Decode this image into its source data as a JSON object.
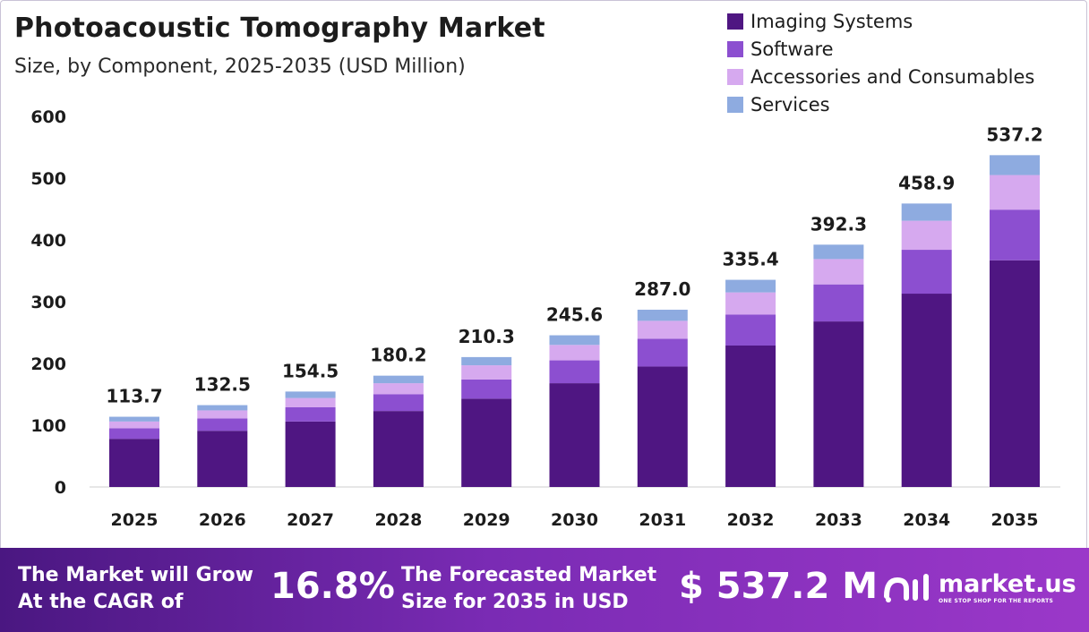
{
  "title": "Photoacoustic Tomography Market",
  "subtitle": "Size, by Component, 2025-2035 (USD Million)",
  "legend": [
    {
      "label": "Imaging Systems",
      "color": "#4f1682"
    },
    {
      "label": "Software",
      "color": "#8c4fd0"
    },
    {
      "label": "Accessories and Consumables",
      "color": "#d6a9ef"
    },
    {
      "label": "Services",
      "color": "#8eabe0"
    }
  ],
  "chart_data": {
    "type": "bar",
    "stacked": true,
    "categories": [
      "2025",
      "2026",
      "2027",
      "2028",
      "2029",
      "2030",
      "2031",
      "2032",
      "2033",
      "2034",
      "2035"
    ],
    "series": [
      {
        "name": "Imaging Systems",
        "color": "#4f1682",
        "values": [
          78,
          91,
          106,
          123,
          143,
          168,
          195,
          229,
          268,
          313,
          367
        ]
      },
      {
        "name": "Software",
        "color": "#8c4fd0",
        "values": [
          17,
          20,
          23,
          27,
          31,
          37,
          45,
          50,
          60,
          71,
          82
        ]
      },
      {
        "name": "Accessories and Consumables",
        "color": "#d6a9ef",
        "values": [
          11,
          13,
          15,
          18,
          23,
          25,
          29,
          36,
          41,
          47,
          56
        ]
      },
      {
        "name": "Services",
        "color": "#8eabe0",
        "values": [
          7.7,
          8.5,
          10.5,
          12.2,
          13.3,
          15.6,
          18.0,
          20.4,
          23.3,
          27.9,
          32.2
        ]
      }
    ],
    "totals": [
      "113.7",
      "132.5",
      "154.5",
      "180.2",
      "210.3",
      "245.6",
      "287.0",
      "335.4",
      "392.3",
      "458.9",
      "537.2"
    ],
    "y_ticks": [
      "0",
      "100",
      "200",
      "300",
      "400",
      "500",
      "600"
    ],
    "ylim": [
      0,
      600
    ],
    "grid": false,
    "legend_position": "top-right"
  },
  "footer": {
    "cagr_text_line1": "The Market will Grow",
    "cagr_text_line2": "At the CAGR of",
    "cagr_value": "16.8%",
    "forecast_text_line1": "The Forecasted Market",
    "forecast_text_line2": "Size for 2035 in USD",
    "forecast_value": "$ 537.2 M",
    "logo_name": "market.us",
    "logo_tagline": "ONE STOP SHOP FOR THE REPORTS"
  }
}
